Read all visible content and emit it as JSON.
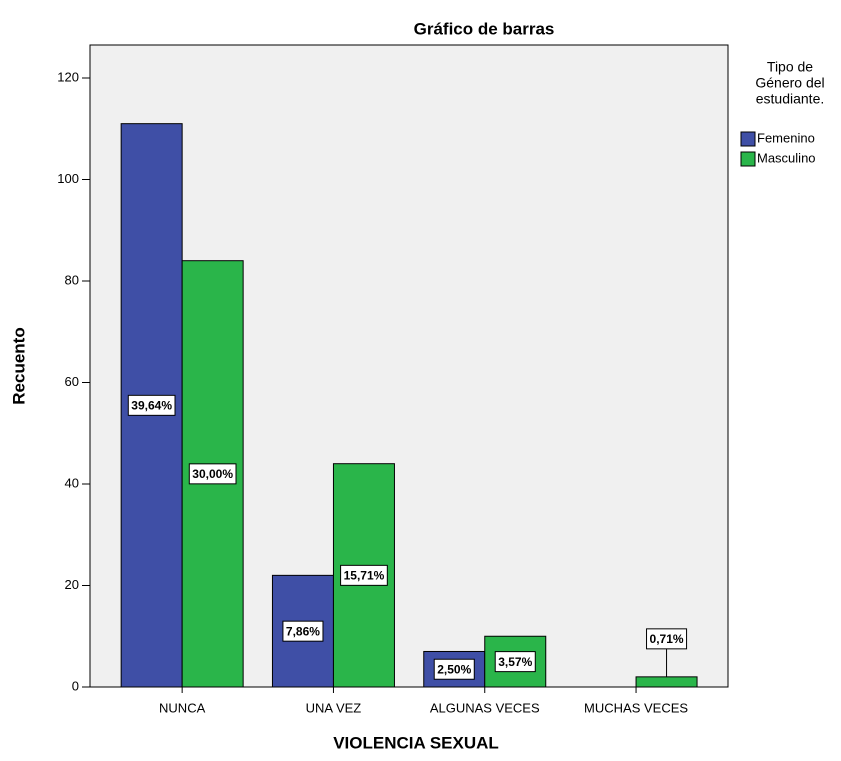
{
  "chart_data": {
    "type": "bar",
    "title": "Gráfico de barras",
    "x_label": "VIOLENCIA SEXUAL",
    "y_label": "Recuento",
    "categories": [
      "NUNCA",
      "UNA VEZ",
      "ALGUNAS VECES",
      "MUCHAS VECES"
    ],
    "legend_title": [
      "Tipo de",
      "Género del",
      "estudiante."
    ],
    "series": [
      {
        "name": "Femenino",
        "color": "#3f4fa6",
        "values": [
          111,
          22,
          7,
          0
        ],
        "data_labels": [
          "39,64%",
          "7,86%",
          "2,50%",
          null
        ]
      },
      {
        "name": "Masculino",
        "color": "#2ab54a",
        "values": [
          84,
          44,
          10,
          2
        ],
        "data_labels": [
          "30,00%",
          "15,71%",
          "3,57%",
          "0,71%"
        ]
      }
    ],
    "ylim": [
      0,
      126.5
    ],
    "yticks": [
      0,
      20,
      40,
      60,
      80,
      100,
      120
    ],
    "grid": false,
    "legend": "right"
  }
}
